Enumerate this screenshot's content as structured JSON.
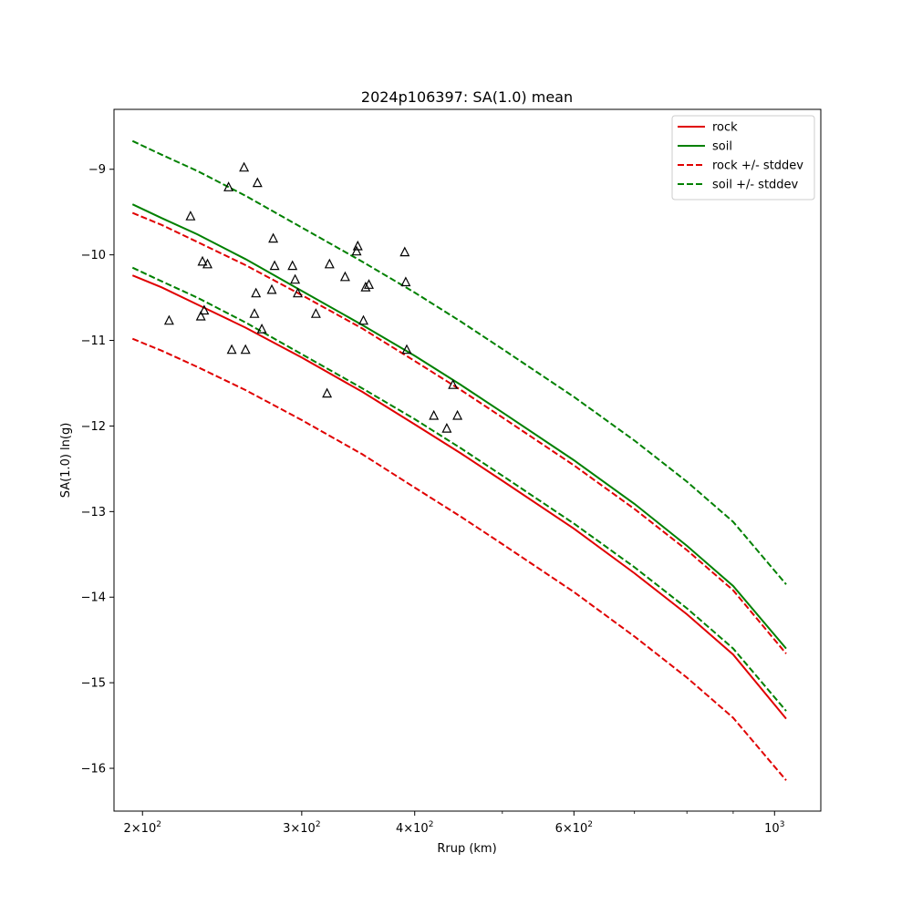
{
  "chart_data": {
    "type": "line",
    "title": "2024p106397: SA(1.0) mean",
    "xlabel": "Rrup (km)",
    "ylabel": "SA(1.0) ln(g)",
    "xscale": "log",
    "xlim": [
      186,
      1125
    ],
    "ylim": [
      -16.5,
      -8.3
    ],
    "grid": false,
    "legend_position": "top-right",
    "x_ticks": [
      {
        "value": 200,
        "base": "2×10",
        "exp": "2"
      },
      {
        "value": 300,
        "base": "3×10",
        "exp": "2"
      },
      {
        "value": 400,
        "base": "4×10",
        "exp": "2"
      },
      {
        "value": 600,
        "base": "6×10",
        "exp": "2"
      },
      {
        "value": 1000,
        "base": "10",
        "exp": "3"
      }
    ],
    "x_minor_ticks": [
      500,
      700,
      800,
      900
    ],
    "y_ticks": [
      {
        "value": -9,
        "label": "−9"
      },
      {
        "value": -10,
        "label": "−10"
      },
      {
        "value": -11,
        "label": "−11"
      },
      {
        "value": -12,
        "label": "−12"
      },
      {
        "value": -13,
        "label": "−13"
      },
      {
        "value": -14,
        "label": "−14"
      },
      {
        "value": -15,
        "label": "−15"
      },
      {
        "value": -16,
        "label": "−16"
      }
    ],
    "series": [
      {
        "name": "rock",
        "style": "solid",
        "color": "#e00000",
        "x": [
          195,
          210,
          230,
          260,
          300,
          350,
          400,
          450,
          500,
          600,
          700,
          800,
          900,
          1030
        ],
        "y": [
          -10.24,
          -10.38,
          -10.58,
          -10.85,
          -11.2,
          -11.6,
          -11.98,
          -12.32,
          -12.64,
          -13.2,
          -13.72,
          -14.2,
          -14.67,
          -15.42
        ]
      },
      {
        "name": "soil",
        "style": "solid",
        "color": "#008000",
        "x": [
          195,
          210,
          230,
          260,
          300,
          350,
          400,
          450,
          500,
          600,
          700,
          800,
          900,
          1030
        ],
        "y": [
          -9.41,
          -9.57,
          -9.76,
          -10.05,
          -10.42,
          -10.82,
          -11.18,
          -11.52,
          -11.84,
          -12.4,
          -12.91,
          -13.4,
          -13.87,
          -14.6
        ]
      },
      {
        "name": "rock +/- stddev",
        "style": "dashed",
        "color": "#e00000",
        "x": [
          195,
          210,
          230,
          260,
          300,
          350,
          400,
          450,
          500,
          600,
          700,
          800,
          900,
          1030
        ],
        "y": [
          -9.51,
          -9.65,
          -9.85,
          -10.12,
          -10.47,
          -10.86,
          -11.24,
          -11.58,
          -11.9,
          -12.46,
          -12.97,
          -13.45,
          -13.92,
          -14.66
        ]
      },
      {
        "name": "",
        "style": "dashed",
        "color": "#e00000",
        "x": [
          195,
          210,
          230,
          260,
          300,
          350,
          400,
          450,
          500,
          600,
          700,
          800,
          900,
          1030
        ],
        "y": [
          -10.98,
          -11.12,
          -11.31,
          -11.58,
          -11.93,
          -12.33,
          -12.72,
          -13.06,
          -13.38,
          -13.94,
          -14.46,
          -14.94,
          -15.41,
          -16.14
        ]
      },
      {
        "name": "soil +/- stddev",
        "style": "dashed",
        "color": "#008000",
        "x": [
          195,
          210,
          230,
          260,
          300,
          350,
          400,
          450,
          500,
          600,
          700,
          800,
          900,
          1030
        ],
        "y": [
          -8.67,
          -8.83,
          -9.02,
          -9.31,
          -9.68,
          -10.08,
          -10.44,
          -10.78,
          -11.1,
          -11.66,
          -12.17,
          -12.65,
          -13.12,
          -13.85
        ]
      },
      {
        "name": "",
        "style": "dashed",
        "color": "#008000",
        "x": [
          195,
          210,
          230,
          260,
          300,
          350,
          400,
          450,
          500,
          600,
          700,
          800,
          900,
          1030
        ],
        "y": [
          -10.15,
          -10.31,
          -10.5,
          -10.79,
          -11.16,
          -11.56,
          -11.92,
          -12.26,
          -12.58,
          -13.14,
          -13.65,
          -14.13,
          -14.6,
          -15.33
        ]
      }
    ],
    "scatter": {
      "marker": "triangle-open",
      "x": [
        214,
        226,
        232,
        233,
        234,
        236,
        249,
        251,
        259,
        260,
        266,
        267,
        268,
        271,
        278,
        279,
        280,
        293,
        295,
        297,
        311,
        320,
        322,
        335,
        345,
        346,
        351,
        353,
        356,
        390,
        391,
        392,
        420,
        434,
        441,
        446
      ],
      "y": [
        -10.77,
        -9.55,
        -10.72,
        -10.08,
        -10.65,
        -10.11,
        -9.21,
        -11.11,
        -8.98,
        -11.11,
        -10.69,
        -10.45,
        -9.16,
        -10.87,
        -10.41,
        -9.81,
        -10.13,
        -10.13,
        -10.29,
        -10.45,
        -10.69,
        -11.62,
        -10.11,
        -10.26,
        -9.96,
        -9.9,
        -10.77,
        -10.38,
        -10.35,
        -9.97,
        -10.32,
        -11.11,
        -11.88,
        -12.03,
        -11.52,
        -11.88
      ]
    }
  }
}
